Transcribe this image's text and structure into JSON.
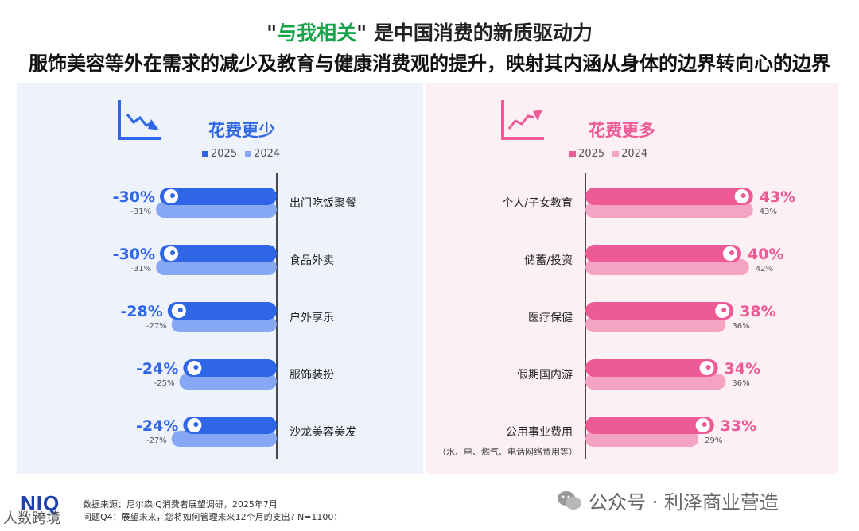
{
  "title_line1_prefix": "\"",
  "title_line1_highlight": "与我相关",
  "title_line1_rest": "\" 是中国消费的新质驱动力",
  "title_line2": "服饰美容等外在需求的减少及教育与健康消费观的提升，映射其内涵从身体的边界转向心的边界",
  "left_panel": {
    "title": "花费更少",
    "legend": [
      "2025",
      "2024"
    ]
  },
  "right_panel": {
    "title": "花费更多",
    "legend": [
      "2025",
      "2024"
    ]
  },
  "footer": {
    "logo": "NIQ",
    "source": "数据来源：尼尔森IQ消费者展望调研，2025年7月",
    "question": "问题Q4：展望未来，您将如何管理未来12个月的支出? N=1100；",
    "watermark": "公众号 · 利泽商业营造",
    "watermark2": "人数跨境"
  },
  "colors": {
    "blue_2025": "#2f66e8",
    "blue_2024": "#86a8f4",
    "pink_2025": "#ee5a95",
    "pink_2024": "#f5a3c2",
    "title_highlight": "#16a34a"
  },
  "chart_data": [
    {
      "type": "bar",
      "title": "花费更少",
      "direction": "leftward",
      "categories": [
        "出门吃饭聚餐",
        "食品外卖",
        "户外享乐",
        "服饰装扮",
        "沙龙美容美发"
      ],
      "series": [
        {
          "name": "2025",
          "values": [
            -30,
            -30,
            -28,
            -24,
            -24
          ],
          "labels": [
            "-30%",
            "-30%",
            "-28%",
            "-24%",
            "-24%"
          ]
        },
        {
          "name": "2024",
          "values": [
            -31,
            -31,
            -27,
            -25,
            -27
          ],
          "labels": [
            "-31%",
            "-31%",
            "-27%",
            "-25%",
            "-27%"
          ]
        }
      ]
    },
    {
      "type": "bar",
      "title": "花费更多",
      "direction": "rightward",
      "categories": [
        "个人/子女教育",
        "储蓄/投资",
        "医疗保健",
        "假期国内游",
        "公用事业费用"
      ],
      "category_notes": [
        "",
        "",
        "",
        "",
        "（水、电、燃气、电话网络费用等）"
      ],
      "series": [
        {
          "name": "2025",
          "values": [
            43,
            40,
            38,
            34,
            33
          ],
          "labels": [
            "43%",
            "40%",
            "38%",
            "34%",
            "33%"
          ]
        },
        {
          "name": "2024",
          "values": [
            43,
            42,
            36,
            36,
            29
          ],
          "labels": [
            "43%",
            "42%",
            "36%",
            "36%",
            "29%"
          ]
        }
      ]
    }
  ]
}
